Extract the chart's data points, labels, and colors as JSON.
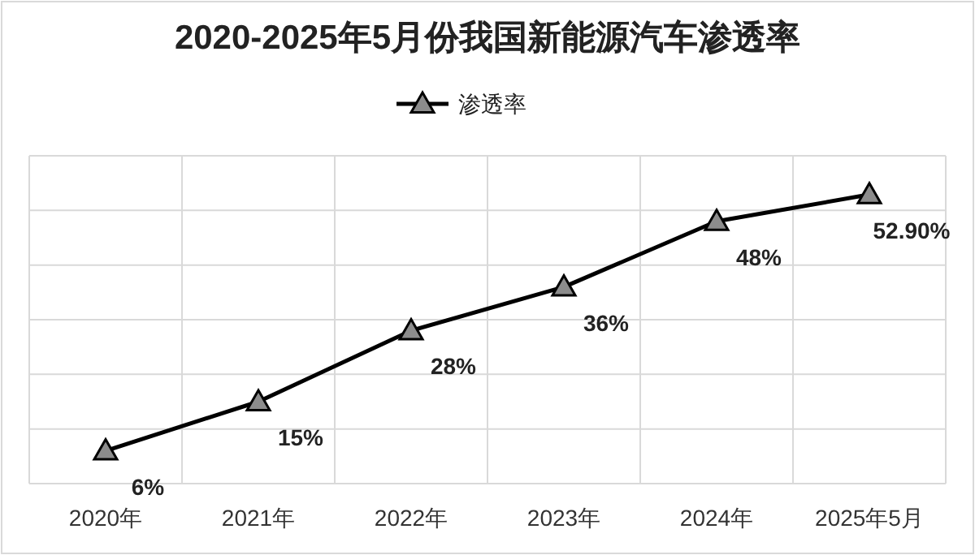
{
  "chart_data": {
    "type": "line",
    "title": "2020-2025年5月份我国新能源汽车渗透率",
    "categories": [
      "2020年",
      "2021年",
      "2022年",
      "2023年",
      "2024年",
      "2025年5月"
    ],
    "series": [
      {
        "name": "渗透率",
        "color": "#000000",
        "values": [
          6,
          15,
          28,
          36,
          48,
          52.9
        ],
        "value_labels": [
          "6%",
          "15%",
          "28%",
          "36%",
          "48%",
          "52.90%"
        ]
      }
    ],
    "ylim": [
      0,
      60
    ],
    "yticks": [
      {
        "value": 0,
        "label": null
      },
      {
        "value": 10,
        "label": null
      },
      {
        "value": 20,
        "label": null
      },
      {
        "value": 30,
        "label": null
      },
      {
        "value": 40,
        "label": null
      },
      {
        "value": 50,
        "label": null
      },
      {
        "value": 60,
        "label": null
      }
    ],
    "grid": true,
    "legend": "top",
    "marker": "triangle",
    "tick_labels": "x"
  }
}
